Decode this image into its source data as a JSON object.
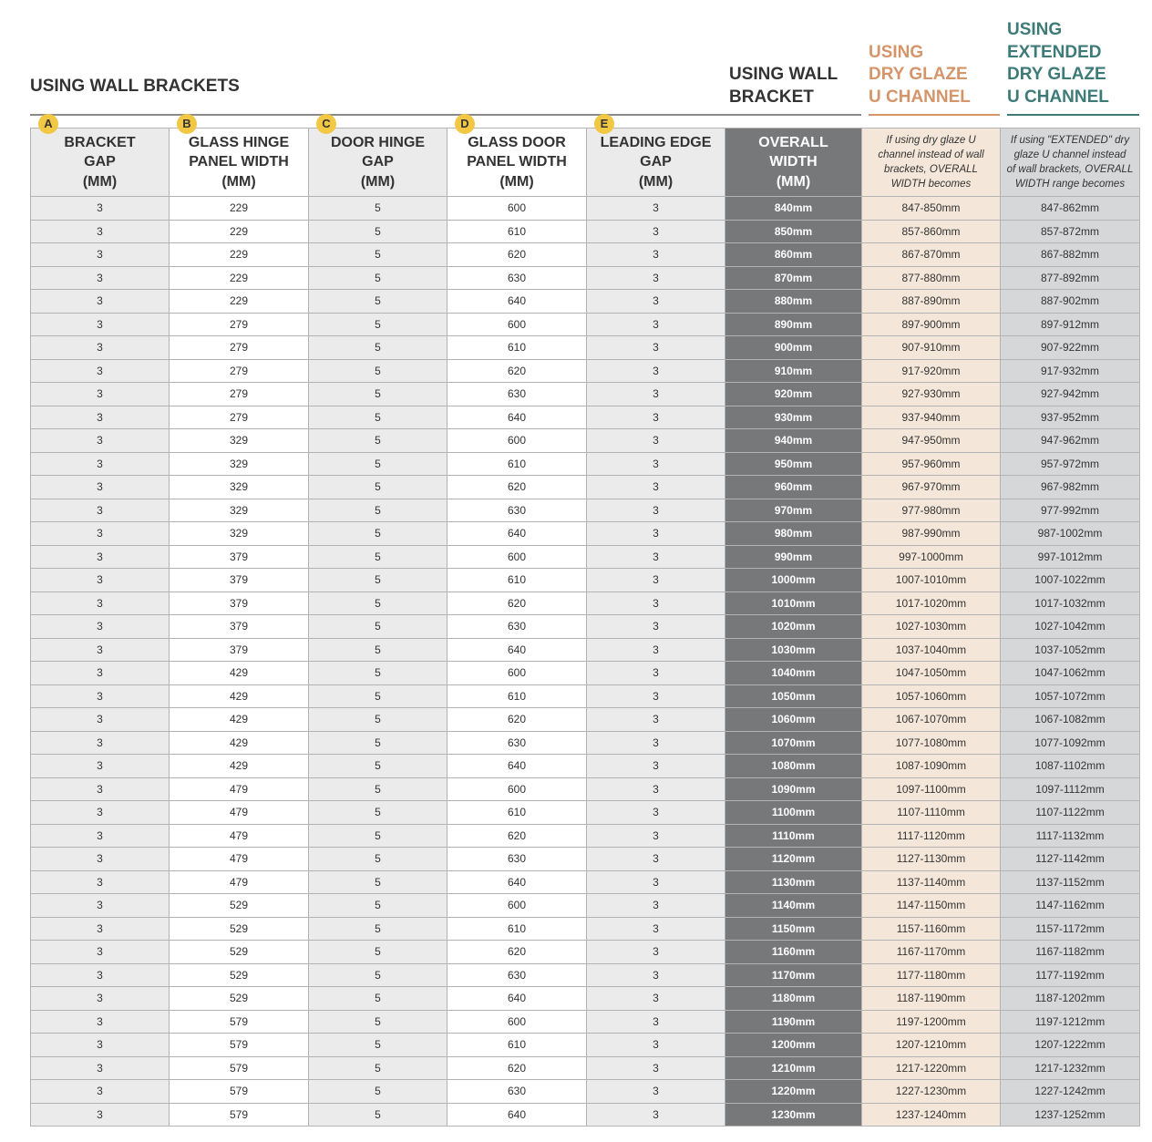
{
  "titles": {
    "wall_brackets": [
      "USING WALL BRACKETS"
    ],
    "wall_bracket": [
      "USING WALL",
      "BRACKET"
    ],
    "dry_glaze": [
      "USING",
      "DRY GLAZE",
      "U CHANNEL"
    ],
    "extended": [
      "USING",
      "EXTENDED",
      "DRY GLAZE",
      "U CHANNEL"
    ]
  },
  "table": {
    "columns": [
      {
        "badge": "A",
        "label": [
          "BRACKET",
          "GAP",
          "(MM)"
        ]
      },
      {
        "badge": "B",
        "label": [
          "GLASS HINGE",
          "PANEL WIDTH",
          "(MM)"
        ]
      },
      {
        "badge": "C",
        "label": [
          "DOOR HINGE",
          "GAP",
          "(MM)"
        ]
      },
      {
        "badge": "D",
        "label": [
          "GLASS DOOR",
          "PANEL WIDTH",
          "(MM)"
        ]
      },
      {
        "badge": "E",
        "label": [
          "LEADING EDGE",
          "GAP",
          "(MM)"
        ]
      },
      {
        "label": [
          "OVERALL",
          "WIDTH",
          "(MM)"
        ]
      },
      {
        "note": [
          "If using dry glaze U",
          "channel instead of wall",
          "brackets, OVERALL",
          "WIDTH becomes"
        ]
      },
      {
        "note": [
          "If using \"EXTENDED\" dry",
          "glaze U channel instead",
          "of wall brackets, OVERALL",
          "WIDTH range becomes"
        ]
      }
    ],
    "rows": [
      [
        3,
        229,
        5,
        600,
        3,
        "840mm",
        "847-850mm",
        "847-862mm"
      ],
      [
        3,
        229,
        5,
        610,
        3,
        "850mm",
        "857-860mm",
        "857-872mm"
      ],
      [
        3,
        229,
        5,
        620,
        3,
        "860mm",
        "867-870mm",
        "867-882mm"
      ],
      [
        3,
        229,
        5,
        630,
        3,
        "870mm",
        "877-880mm",
        "877-892mm"
      ],
      [
        3,
        229,
        5,
        640,
        3,
        "880mm",
        "887-890mm",
        "887-902mm"
      ],
      [
        3,
        279,
        5,
        600,
        3,
        "890mm",
        "897-900mm",
        "897-912mm"
      ],
      [
        3,
        279,
        5,
        610,
        3,
        "900mm",
        "907-910mm",
        "907-922mm"
      ],
      [
        3,
        279,
        5,
        620,
        3,
        "910mm",
        "917-920mm",
        "917-932mm"
      ],
      [
        3,
        279,
        5,
        630,
        3,
        "920mm",
        "927-930mm",
        "927-942mm"
      ],
      [
        3,
        279,
        5,
        640,
        3,
        "930mm",
        "937-940mm",
        "937-952mm"
      ],
      [
        3,
        329,
        5,
        600,
        3,
        "940mm",
        "947-950mm",
        "947-962mm"
      ],
      [
        3,
        329,
        5,
        610,
        3,
        "950mm",
        "957-960mm",
        "957-972mm"
      ],
      [
        3,
        329,
        5,
        620,
        3,
        "960mm",
        "967-970mm",
        "967-982mm"
      ],
      [
        3,
        329,
        5,
        630,
        3,
        "970mm",
        "977-980mm",
        "977-992mm"
      ],
      [
        3,
        329,
        5,
        640,
        3,
        "980mm",
        "987-990mm",
        "987-1002mm"
      ],
      [
        3,
        379,
        5,
        600,
        3,
        "990mm",
        "997-1000mm",
        "997-1012mm"
      ],
      [
        3,
        379,
        5,
        610,
        3,
        "1000mm",
        "1007-1010mm",
        "1007-1022mm"
      ],
      [
        3,
        379,
        5,
        620,
        3,
        "1010mm",
        "1017-1020mm",
        "1017-1032mm"
      ],
      [
        3,
        379,
        5,
        630,
        3,
        "1020mm",
        "1027-1030mm",
        "1027-1042mm"
      ],
      [
        3,
        379,
        5,
        640,
        3,
        "1030mm",
        "1037-1040mm",
        "1037-1052mm"
      ],
      [
        3,
        429,
        5,
        600,
        3,
        "1040mm",
        "1047-1050mm",
        "1047-1062mm"
      ],
      [
        3,
        429,
        5,
        610,
        3,
        "1050mm",
        "1057-1060mm",
        "1057-1072mm"
      ],
      [
        3,
        429,
        5,
        620,
        3,
        "1060mm",
        "1067-1070mm",
        "1067-1082mm"
      ],
      [
        3,
        429,
        5,
        630,
        3,
        "1070mm",
        "1077-1080mm",
        "1077-1092mm"
      ],
      [
        3,
        429,
        5,
        640,
        3,
        "1080mm",
        "1087-1090mm",
        "1087-1102mm"
      ],
      [
        3,
        479,
        5,
        600,
        3,
        "1090mm",
        "1097-1100mm",
        "1097-1112mm"
      ],
      [
        3,
        479,
        5,
        610,
        3,
        "1100mm",
        "1107-1110mm",
        "1107-1122mm"
      ],
      [
        3,
        479,
        5,
        620,
        3,
        "1110mm",
        "1117-1120mm",
        "1117-1132mm"
      ],
      [
        3,
        479,
        5,
        630,
        3,
        "1120mm",
        "1127-1130mm",
        "1127-1142mm"
      ],
      [
        3,
        479,
        5,
        640,
        3,
        "1130mm",
        "1137-1140mm",
        "1137-1152mm"
      ],
      [
        3,
        529,
        5,
        600,
        3,
        "1140mm",
        "1147-1150mm",
        "1147-1162mm"
      ],
      [
        3,
        529,
        5,
        610,
        3,
        "1150mm",
        "1157-1160mm",
        "1157-1172mm"
      ],
      [
        3,
        529,
        5,
        620,
        3,
        "1160mm",
        "1167-1170mm",
        "1167-1182mm"
      ],
      [
        3,
        529,
        5,
        630,
        3,
        "1170mm",
        "1177-1180mm",
        "1177-1192mm"
      ],
      [
        3,
        529,
        5,
        640,
        3,
        "1180mm",
        "1187-1190mm",
        "1187-1202mm"
      ],
      [
        3,
        579,
        5,
        600,
        3,
        "1190mm",
        "1197-1200mm",
        "1197-1212mm"
      ],
      [
        3,
        579,
        5,
        610,
        3,
        "1200mm",
        "1207-1210mm",
        "1207-1222mm"
      ],
      [
        3,
        579,
        5,
        620,
        3,
        "1210mm",
        "1217-1220mm",
        "1217-1232mm"
      ],
      [
        3,
        579,
        5,
        630,
        3,
        "1220mm",
        "1227-1230mm",
        "1227-1242mm"
      ],
      [
        3,
        579,
        5,
        640,
        3,
        "1230mm",
        "1237-1240mm",
        "1237-1252mm"
      ]
    ]
  }
}
